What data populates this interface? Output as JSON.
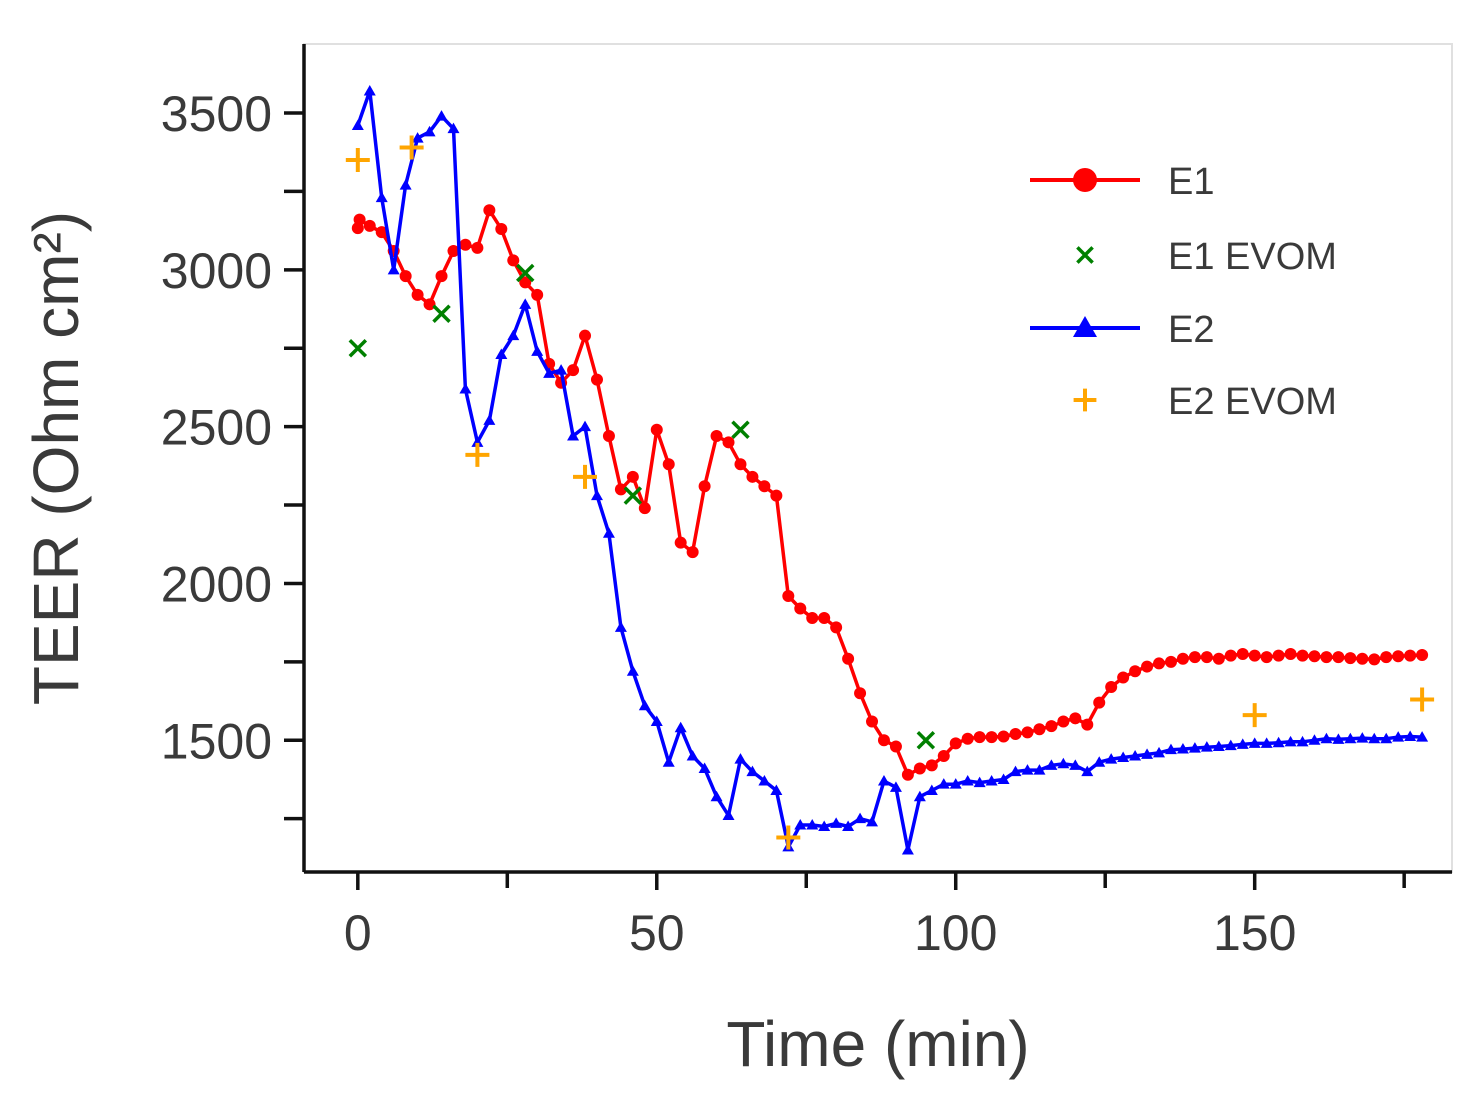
{
  "chart_data": {
    "type": "line",
    "title": "",
    "xlabel": "Time (min)",
    "ylabel": "TEER (Ohm cm²)",
    "xlim": [
      -9,
      183
    ],
    "ylim": [
      1080,
      3720
    ],
    "x_ticks": [
      0,
      50,
      100,
      150
    ],
    "x_tick_labels": [
      "0",
      "50",
      "100",
      "150"
    ],
    "x_minor_ticks": [
      25,
      75,
      125,
      175
    ],
    "y_ticks": [
      1500,
      2000,
      2500,
      3000,
      3500
    ],
    "y_tick_labels": [
      "1500",
      "2000",
      "2500",
      "3000",
      "3500"
    ],
    "y_minor_ticks": [
      1250,
      1750,
      2250,
      2750,
      3250
    ],
    "grid": false,
    "legend_position": "top-right",
    "series": [
      {
        "name": "E1",
        "color": "#ff0000",
        "marker": "circle",
        "line": true,
        "points": [
          [
            0,
            3133
          ],
          [
            0.3,
            3160
          ],
          [
            2,
            3140
          ],
          [
            4,
            3120
          ],
          [
            6,
            3060
          ],
          [
            8,
            2980
          ],
          [
            10,
            2920
          ],
          [
            12,
            2890
          ],
          [
            14,
            2980
          ],
          [
            16,
            3060
          ],
          [
            18,
            3080
          ],
          [
            20,
            3070
          ],
          [
            22,
            3190
          ],
          [
            24,
            3130
          ],
          [
            26,
            3030
          ],
          [
            28,
            2960
          ],
          [
            30,
            2920
          ],
          [
            32,
            2700
          ],
          [
            34,
            2640
          ],
          [
            36,
            2680
          ],
          [
            38,
            2790
          ],
          [
            40,
            2650
          ],
          [
            42,
            2470
          ],
          [
            44,
            2300
          ],
          [
            46,
            2340
          ],
          [
            48,
            2240
          ],
          [
            50,
            2490
          ],
          [
            52,
            2380
          ],
          [
            54,
            2130
          ],
          [
            56,
            2100
          ],
          [
            58,
            2310
          ],
          [
            60,
            2470
          ],
          [
            62,
            2450
          ],
          [
            64,
            2380
          ],
          [
            66,
            2340
          ],
          [
            68,
            2310
          ],
          [
            70,
            2280
          ],
          [
            72,
            1960
          ],
          [
            74,
            1920
          ],
          [
            76,
            1890
          ],
          [
            78,
            1890
          ],
          [
            80,
            1860
          ],
          [
            82,
            1760
          ],
          [
            84,
            1650
          ],
          [
            86,
            1560
          ],
          [
            88,
            1500
          ],
          [
            90,
            1480
          ],
          [
            92,
            1390
          ],
          [
            94,
            1410
          ],
          [
            96,
            1420
          ],
          [
            98,
            1450
          ],
          [
            100,
            1490
          ],
          [
            102,
            1505
          ],
          [
            104,
            1510
          ],
          [
            106,
            1510
          ],
          [
            108,
            1512
          ],
          [
            110,
            1520
          ],
          [
            112,
            1525
          ],
          [
            114,
            1535
          ],
          [
            116,
            1545
          ],
          [
            118,
            1560
          ],
          [
            120,
            1570
          ],
          [
            122,
            1550
          ],
          [
            124,
            1620
          ],
          [
            126,
            1670
          ],
          [
            128,
            1700
          ],
          [
            130,
            1720
          ],
          [
            132,
            1735
          ],
          [
            134,
            1745
          ],
          [
            136,
            1750
          ],
          [
            138,
            1760
          ],
          [
            140,
            1765
          ],
          [
            142,
            1765
          ],
          [
            144,
            1760
          ],
          [
            146,
            1770
          ],
          [
            148,
            1775
          ],
          [
            150,
            1770
          ],
          [
            152,
            1765
          ],
          [
            154,
            1770
          ],
          [
            156,
            1775
          ],
          [
            158,
            1770
          ],
          [
            160,
            1768
          ],
          [
            162,
            1765
          ],
          [
            164,
            1765
          ],
          [
            166,
            1762
          ],
          [
            168,
            1760
          ],
          [
            170,
            1758
          ],
          [
            172,
            1765
          ],
          [
            174,
            1768
          ],
          [
            176,
            1770
          ],
          [
            178,
            1772
          ]
        ]
      },
      {
        "name": "E1 EVOM",
        "color": "#008000",
        "marker": "x",
        "line": false,
        "points": [
          [
            0,
            2750
          ],
          [
            14,
            2860
          ],
          [
            28,
            2990
          ],
          [
            46,
            2280
          ],
          [
            64,
            2490
          ],
          [
            95,
            1500
          ]
        ]
      },
      {
        "name": "E2",
        "color": "#0000ff",
        "marker": "triangle",
        "line": true,
        "points": [
          [
            0,
            3460
          ],
          [
            2,
            3570
          ],
          [
            4,
            3230
          ],
          [
            6,
            3000
          ],
          [
            8,
            3270
          ],
          [
            10,
            3420
          ],
          [
            12,
            3440
          ],
          [
            14,
            3490
          ],
          [
            16,
            3450
          ],
          [
            18,
            2620
          ],
          [
            20,
            2450
          ],
          [
            22,
            2520
          ],
          [
            24,
            2730
          ],
          [
            26,
            2790
          ],
          [
            28,
            2890
          ],
          [
            30,
            2740
          ],
          [
            32,
            2670
          ],
          [
            34,
            2680
          ],
          [
            36,
            2470
          ],
          [
            38,
            2500
          ],
          [
            40,
            2280
          ],
          [
            42,
            2160
          ],
          [
            44,
            1860
          ],
          [
            46,
            1720
          ],
          [
            48,
            1610
          ],
          [
            50,
            1560
          ],
          [
            52,
            1430
          ],
          [
            54,
            1540
          ],
          [
            56,
            1450
          ],
          [
            58,
            1410
          ],
          [
            60,
            1320
          ],
          [
            62,
            1260
          ],
          [
            64,
            1440
          ],
          [
            66,
            1400
          ],
          [
            68,
            1370
          ],
          [
            70,
            1340
          ],
          [
            72,
            1160
          ],
          [
            74,
            1230
          ],
          [
            76,
            1230
          ],
          [
            78,
            1225
          ],
          [
            80,
            1235
          ],
          [
            82,
            1225
          ],
          [
            84,
            1250
          ],
          [
            86,
            1240
          ],
          [
            88,
            1370
          ],
          [
            90,
            1350
          ],
          [
            92,
            1150
          ],
          [
            94,
            1320
          ],
          [
            96,
            1340
          ],
          [
            98,
            1360
          ],
          [
            100,
            1360
          ],
          [
            102,
            1370
          ],
          [
            104,
            1365
          ],
          [
            106,
            1370
          ],
          [
            108,
            1375
          ],
          [
            110,
            1400
          ],
          [
            112,
            1405
          ],
          [
            114,
            1405
          ],
          [
            116,
            1420
          ],
          [
            118,
            1425
          ],
          [
            120,
            1420
          ],
          [
            122,
            1400
          ],
          [
            124,
            1430
          ],
          [
            126,
            1440
          ],
          [
            128,
            1445
          ],
          [
            130,
            1450
          ],
          [
            132,
            1455
          ],
          [
            134,
            1460
          ],
          [
            136,
            1470
          ],
          [
            138,
            1472
          ],
          [
            140,
            1475
          ],
          [
            142,
            1478
          ],
          [
            144,
            1480
          ],
          [
            146,
            1483
          ],
          [
            148,
            1487
          ],
          [
            150,
            1490
          ],
          [
            152,
            1490
          ],
          [
            154,
            1492
          ],
          [
            156,
            1495
          ],
          [
            158,
            1495
          ],
          [
            160,
            1500
          ],
          [
            162,
            1505
          ],
          [
            164,
            1503
          ],
          [
            166,
            1505
          ],
          [
            168,
            1507
          ],
          [
            170,
            1505
          ],
          [
            172,
            1505
          ],
          [
            174,
            1510
          ],
          [
            176,
            1512
          ],
          [
            178,
            1510
          ]
        ]
      },
      {
        "name": "E2 EVOM",
        "color": "#ffa500",
        "marker": "plus",
        "line": false,
        "points": [
          [
            0,
            3350
          ],
          [
            9,
            3390
          ],
          [
            20,
            2410
          ],
          [
            38,
            2340
          ],
          [
            72,
            1190
          ],
          [
            150,
            1580
          ],
          [
            178,
            1630
          ]
        ]
      }
    ]
  }
}
